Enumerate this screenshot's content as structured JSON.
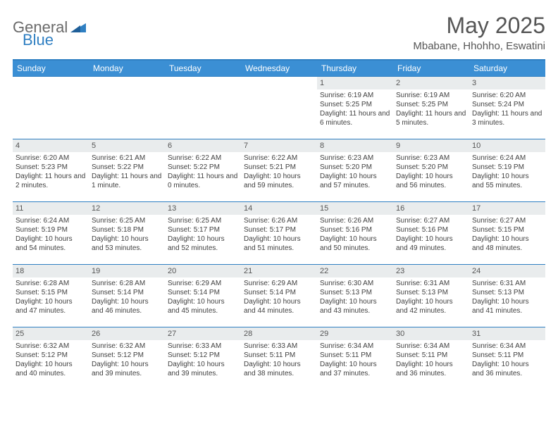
{
  "brand": {
    "part1": "General",
    "part2": "Blue",
    "triangle_color": "#2f7fc2"
  },
  "title": "May 2025",
  "location": "Mbabane, Hhohho, Eswatini",
  "colors": {
    "header_bg": "#3b8fd4",
    "header_text": "#ffffff",
    "rule": "#2f7fc2",
    "daynum_bg": "#e9eced",
    "text": "#414141"
  },
  "weekdays": [
    "Sunday",
    "Monday",
    "Tuesday",
    "Wednesday",
    "Thursday",
    "Friday",
    "Saturday"
  ],
  "weeks": [
    [
      null,
      null,
      null,
      null,
      {
        "n": "1",
        "sr": "Sunrise: 6:19 AM",
        "ss": "Sunset: 5:25 PM",
        "dl": "Daylight: 11 hours and 6 minutes."
      },
      {
        "n": "2",
        "sr": "Sunrise: 6:19 AM",
        "ss": "Sunset: 5:25 PM",
        "dl": "Daylight: 11 hours and 5 minutes."
      },
      {
        "n": "3",
        "sr": "Sunrise: 6:20 AM",
        "ss": "Sunset: 5:24 PM",
        "dl": "Daylight: 11 hours and 3 minutes."
      }
    ],
    [
      {
        "n": "4",
        "sr": "Sunrise: 6:20 AM",
        "ss": "Sunset: 5:23 PM",
        "dl": "Daylight: 11 hours and 2 minutes."
      },
      {
        "n": "5",
        "sr": "Sunrise: 6:21 AM",
        "ss": "Sunset: 5:22 PM",
        "dl": "Daylight: 11 hours and 1 minute."
      },
      {
        "n": "6",
        "sr": "Sunrise: 6:22 AM",
        "ss": "Sunset: 5:22 PM",
        "dl": "Daylight: 11 hours and 0 minutes."
      },
      {
        "n": "7",
        "sr": "Sunrise: 6:22 AM",
        "ss": "Sunset: 5:21 PM",
        "dl": "Daylight: 10 hours and 59 minutes."
      },
      {
        "n": "8",
        "sr": "Sunrise: 6:23 AM",
        "ss": "Sunset: 5:20 PM",
        "dl": "Daylight: 10 hours and 57 minutes."
      },
      {
        "n": "9",
        "sr": "Sunrise: 6:23 AM",
        "ss": "Sunset: 5:20 PM",
        "dl": "Daylight: 10 hours and 56 minutes."
      },
      {
        "n": "10",
        "sr": "Sunrise: 6:24 AM",
        "ss": "Sunset: 5:19 PM",
        "dl": "Daylight: 10 hours and 55 minutes."
      }
    ],
    [
      {
        "n": "11",
        "sr": "Sunrise: 6:24 AM",
        "ss": "Sunset: 5:19 PM",
        "dl": "Daylight: 10 hours and 54 minutes."
      },
      {
        "n": "12",
        "sr": "Sunrise: 6:25 AM",
        "ss": "Sunset: 5:18 PM",
        "dl": "Daylight: 10 hours and 53 minutes."
      },
      {
        "n": "13",
        "sr": "Sunrise: 6:25 AM",
        "ss": "Sunset: 5:17 PM",
        "dl": "Daylight: 10 hours and 52 minutes."
      },
      {
        "n": "14",
        "sr": "Sunrise: 6:26 AM",
        "ss": "Sunset: 5:17 PM",
        "dl": "Daylight: 10 hours and 51 minutes."
      },
      {
        "n": "15",
        "sr": "Sunrise: 6:26 AM",
        "ss": "Sunset: 5:16 PM",
        "dl": "Daylight: 10 hours and 50 minutes."
      },
      {
        "n": "16",
        "sr": "Sunrise: 6:27 AM",
        "ss": "Sunset: 5:16 PM",
        "dl": "Daylight: 10 hours and 49 minutes."
      },
      {
        "n": "17",
        "sr": "Sunrise: 6:27 AM",
        "ss": "Sunset: 5:15 PM",
        "dl": "Daylight: 10 hours and 48 minutes."
      }
    ],
    [
      {
        "n": "18",
        "sr": "Sunrise: 6:28 AM",
        "ss": "Sunset: 5:15 PM",
        "dl": "Daylight: 10 hours and 47 minutes."
      },
      {
        "n": "19",
        "sr": "Sunrise: 6:28 AM",
        "ss": "Sunset: 5:14 PM",
        "dl": "Daylight: 10 hours and 46 minutes."
      },
      {
        "n": "20",
        "sr": "Sunrise: 6:29 AM",
        "ss": "Sunset: 5:14 PM",
        "dl": "Daylight: 10 hours and 45 minutes."
      },
      {
        "n": "21",
        "sr": "Sunrise: 6:29 AM",
        "ss": "Sunset: 5:14 PM",
        "dl": "Daylight: 10 hours and 44 minutes."
      },
      {
        "n": "22",
        "sr": "Sunrise: 6:30 AM",
        "ss": "Sunset: 5:13 PM",
        "dl": "Daylight: 10 hours and 43 minutes."
      },
      {
        "n": "23",
        "sr": "Sunrise: 6:31 AM",
        "ss": "Sunset: 5:13 PM",
        "dl": "Daylight: 10 hours and 42 minutes."
      },
      {
        "n": "24",
        "sr": "Sunrise: 6:31 AM",
        "ss": "Sunset: 5:13 PM",
        "dl": "Daylight: 10 hours and 41 minutes."
      }
    ],
    [
      {
        "n": "25",
        "sr": "Sunrise: 6:32 AM",
        "ss": "Sunset: 5:12 PM",
        "dl": "Daylight: 10 hours and 40 minutes."
      },
      {
        "n": "26",
        "sr": "Sunrise: 6:32 AM",
        "ss": "Sunset: 5:12 PM",
        "dl": "Daylight: 10 hours and 39 minutes."
      },
      {
        "n": "27",
        "sr": "Sunrise: 6:33 AM",
        "ss": "Sunset: 5:12 PM",
        "dl": "Daylight: 10 hours and 39 minutes."
      },
      {
        "n": "28",
        "sr": "Sunrise: 6:33 AM",
        "ss": "Sunset: 5:11 PM",
        "dl": "Daylight: 10 hours and 38 minutes."
      },
      {
        "n": "29",
        "sr": "Sunrise: 6:34 AM",
        "ss": "Sunset: 5:11 PM",
        "dl": "Daylight: 10 hours and 37 minutes."
      },
      {
        "n": "30",
        "sr": "Sunrise: 6:34 AM",
        "ss": "Sunset: 5:11 PM",
        "dl": "Daylight: 10 hours and 36 minutes."
      },
      {
        "n": "31",
        "sr": "Sunrise: 6:34 AM",
        "ss": "Sunset: 5:11 PM",
        "dl": "Daylight: 10 hours and 36 minutes."
      }
    ]
  ]
}
